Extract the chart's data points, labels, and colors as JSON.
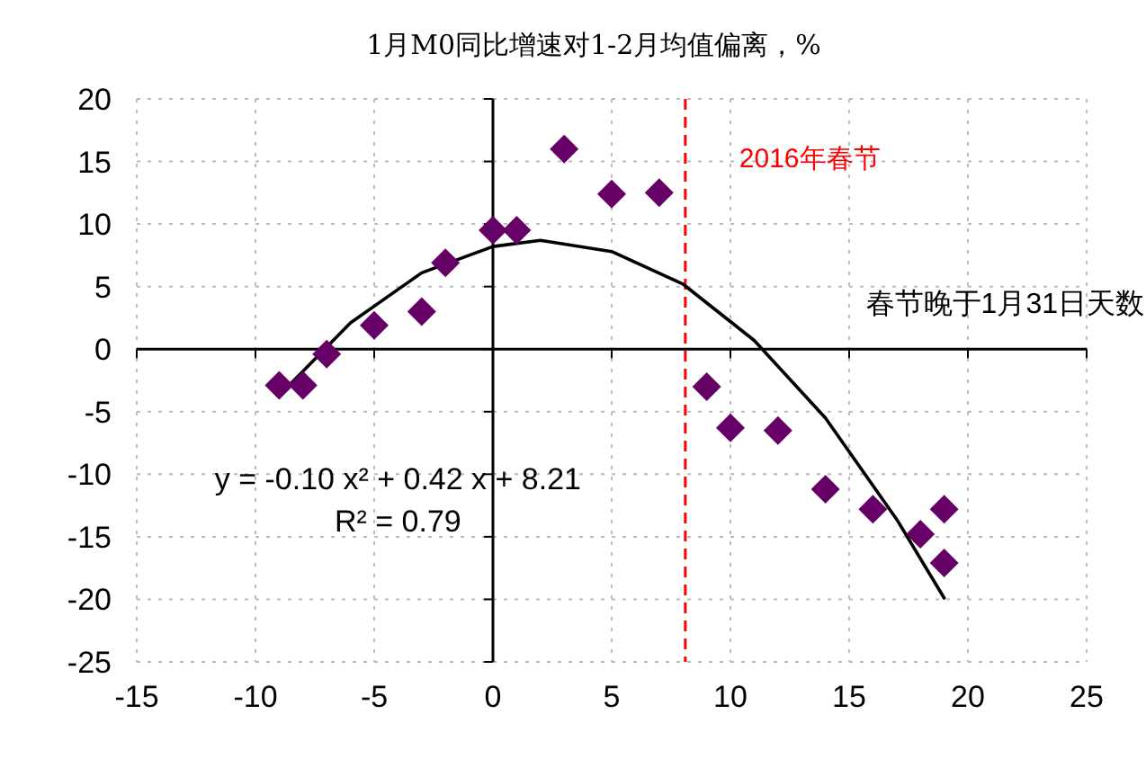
{
  "chart_data": {
    "type": "scatter",
    "title": "1月M0同比增速对1-2月均值偏离，%",
    "xlabel": "春节晚于1月31日天数",
    "xlim": [
      -15,
      25
    ],
    "xticks": [
      -15,
      -10,
      -5,
      0,
      5,
      10,
      15,
      20,
      25
    ],
    "ylim": [
      -25,
      20
    ],
    "yticks": [
      -25,
      -20,
      -15,
      -10,
      -5,
      0,
      5,
      10,
      15,
      20
    ],
    "grid": true,
    "marker": "diamond",
    "series": [
      {
        "color": "#660066",
        "x": [
          -9,
          -8,
          -7,
          -5,
          -3,
          -2,
          0,
          1,
          3,
          5,
          7,
          9,
          10,
          12,
          14,
          16,
          18,
          19,
          19
        ],
        "values": [
          -2.9,
          -2.9,
          -0.4,
          1.9,
          3.0,
          6.9,
          9.5,
          9.5,
          16.0,
          12.4,
          12.5,
          -3.0,
          -6.3,
          -6.5,
          -11.2,
          -12.8,
          -14.8,
          -12.8,
          -17.1
        ]
      },
      {
        "type": "line",
        "color": "#000000",
        "marker": "none",
        "x": [
          -9,
          -6,
          -3,
          0,
          2,
          5,
          8,
          11,
          14,
          17,
          19
        ],
        "values": [
          -3.7,
          2.1,
          6.1,
          8.2,
          8.7,
          7.8,
          5.2,
          0.7,
          -5.5,
          -13.6,
          -19.9
        ]
      }
    ],
    "ref_lines": [
      {
        "axis": "x",
        "value": 8.1,
        "label": "2016年春节",
        "color": "#ff0000",
        "line_style": "dashed"
      }
    ],
    "annotations": [
      "y = -0.10 x² + 0.42 x + 8.21",
      "R² = 0.79"
    ]
  }
}
